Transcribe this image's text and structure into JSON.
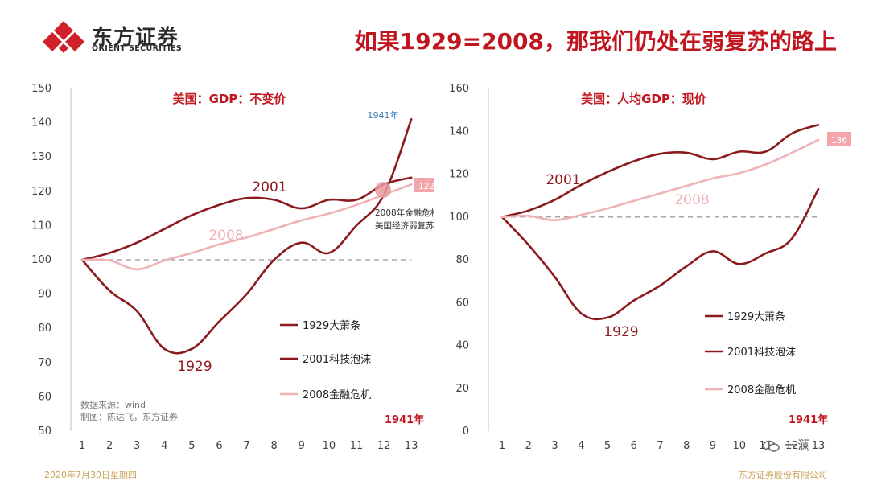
{
  "header": {
    "logo_cn": "东方证券",
    "logo_en": "ORIENT SECURITIES",
    "headline": "如果1929=2008，那我们仍处在弱复苏的路上"
  },
  "footer": {
    "date": "2020年7月30日星期四",
    "company": "东方证券股份有限公司",
    "watermark": "一澜"
  },
  "colors": {
    "dark_red": "#8b1a1f",
    "light_pink": "#f0b2b4",
    "accent_red": "#c0161f",
    "dashed": "#a8a8a8",
    "year_blue": "#3b7fb8"
  },
  "chart_data": [
    {
      "type": "line",
      "title": "美国：GDP：不变价",
      "x": [
        1,
        2,
        3,
        4,
        5,
        6,
        7,
        8,
        9,
        10,
        11,
        12,
        13
      ],
      "ylim": [
        50,
        150
      ],
      "yticks": [
        50,
        60,
        70,
        80,
        90,
        100,
        110,
        120,
        130,
        140,
        150
      ],
      "baseline": 100,
      "series": [
        {
          "name": "1929大萧条",
          "label": "1929",
          "x": [
            1,
            2,
            3,
            4,
            5,
            6,
            7,
            8,
            9,
            10,
            11,
            12,
            13
          ],
          "values": [
            100,
            91,
            85,
            74,
            74,
            82,
            90,
            100,
            105,
            102,
            110,
            119,
            141
          ]
        },
        {
          "name": "2001科技泡沫",
          "label": "2001",
          "x": [
            1,
            2,
            3,
            4,
            5,
            6,
            7,
            8,
            9,
            10,
            11,
            12,
            13
          ],
          "values": [
            100,
            102,
            105,
            109,
            113,
            116,
            118,
            117.5,
            115,
            117.5,
            117.5,
            122,
            124
          ]
        },
        {
          "name": "2008金融危机",
          "label": "2008",
          "x": [
            1,
            2,
            3,
            4,
            5,
            6,
            7,
            8,
            9,
            10,
            11,
            12,
            13
          ],
          "values": [
            100,
            99.8,
            97.2,
            99.8,
            102,
            104.5,
            106.5,
            109,
            111.5,
            113.5,
            116,
            119,
            122
          ]
        }
      ],
      "end_label": "122",
      "peak_label": "1941年",
      "year_label": "1941年",
      "annotation": [
        "2008年金融危机后",
        "美国经济弱复苏"
      ],
      "source_lines": [
        "数据来源：wind",
        "制图：陈达飞，东方证券"
      ]
    },
    {
      "type": "line",
      "title": "美国：人均GDP：现价",
      "x": [
        1,
        2,
        3,
        4,
        5,
        6,
        7,
        8,
        9,
        10,
        11,
        12,
        13
      ],
      "ylim": [
        0,
        160
      ],
      "yticks": [
        0,
        20,
        40,
        60,
        80,
        100,
        120,
        140,
        160
      ],
      "baseline": 100,
      "series": [
        {
          "name": "1929大萧条",
          "label": "1929",
          "x": [
            1,
            2,
            3,
            4,
            5,
            6,
            7,
            8,
            9,
            10,
            11,
            12,
            13
          ],
          "values": [
            100,
            87,
            72,
            55,
            53,
            61,
            68,
            77,
            84,
            78,
            83,
            90,
            113
          ]
        },
        {
          "name": "2001科技泡沫",
          "label": "2001",
          "x": [
            1,
            2,
            3,
            4,
            5,
            6,
            7,
            8,
            9,
            10,
            11,
            12,
            13
          ],
          "values": [
            100,
            103,
            108,
            115,
            121,
            126,
            129.5,
            130,
            127,
            130.5,
            130.5,
            139,
            143
          ]
        },
        {
          "name": "2008金融危机",
          "label": "2008",
          "x": [
            1,
            2,
            3,
            4,
            5,
            6,
            7,
            8,
            9,
            10,
            11,
            12,
            13
          ],
          "values": [
            100,
            100.5,
            98.5,
            101,
            104,
            107.5,
            111,
            114.5,
            118,
            120.5,
            124.5,
            130,
            136
          ]
        }
      ],
      "end_label": "136",
      "year_label": "1941年"
    }
  ]
}
